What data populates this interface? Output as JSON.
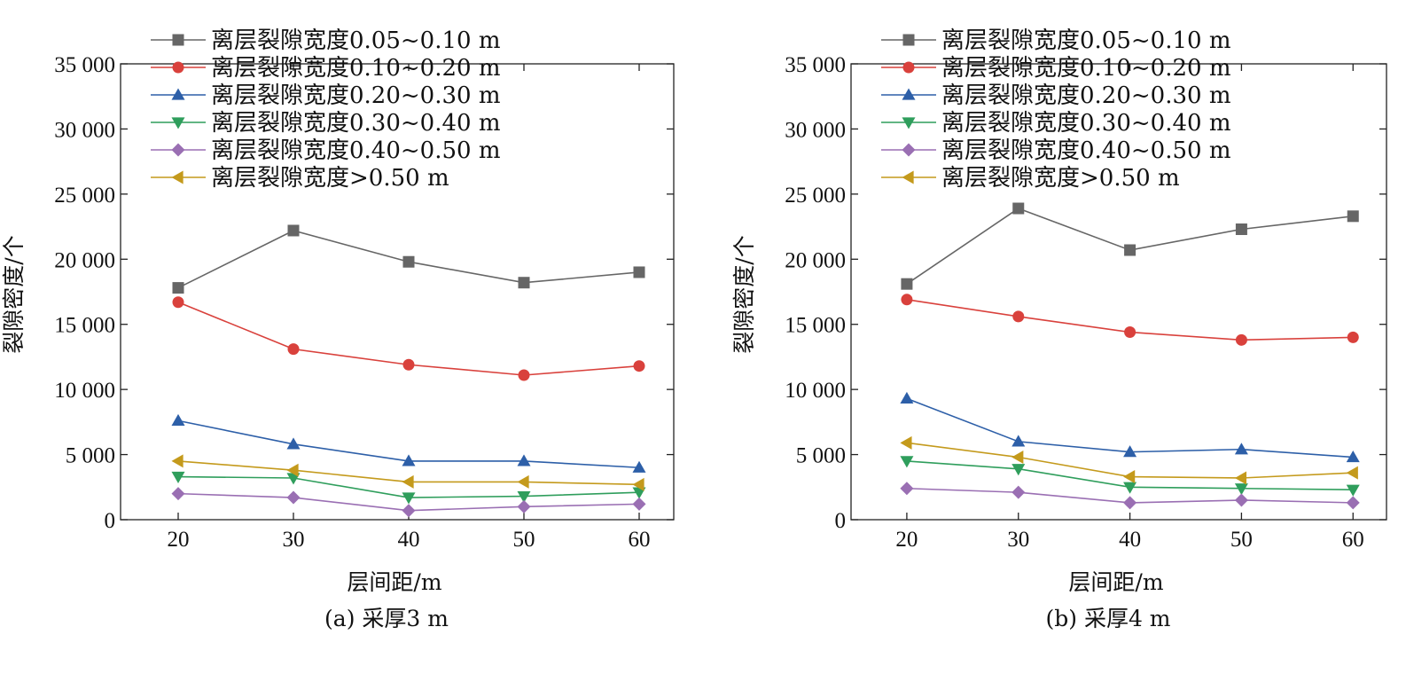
{
  "chart_data": [
    {
      "type": "line",
      "caption": "(a) 采厚3 m",
      "xlabel": "层间距/m",
      "ylabel": "裂隙密度/个",
      "x": [
        20,
        30,
        40,
        50,
        60
      ],
      "x_ticks": [
        "20",
        "30",
        "40",
        "50",
        "60"
      ],
      "xlim": [
        15,
        63
      ],
      "ylim": [
        0,
        35000
      ],
      "y_ticks": [
        "0",
        "5 000",
        "10 000",
        "15 000",
        "20 000",
        "25 000",
        "30 000",
        "35 000"
      ],
      "legend_position": "top-left",
      "series": [
        {
          "name": "离层裂隙宽度0.05~0.10 m",
          "color": "#666666",
          "marker": "square",
          "values": [
            17800,
            22200,
            19800,
            18200,
            19000
          ]
        },
        {
          "name": "离层裂隙宽度0.10~0.20 m",
          "color": "#d9413c",
          "marker": "circle",
          "values": [
            16700,
            13100,
            11900,
            11100,
            11800
          ]
        },
        {
          "name": "离层裂隙宽度0.20~0.30 m",
          "color": "#2d5fa8",
          "marker": "triangle-up",
          "values": [
            7600,
            5800,
            4500,
            4500,
            4000
          ]
        },
        {
          "name": "离层裂隙宽度0.30~0.40 m",
          "color": "#2f9e5c",
          "marker": "triangle-down",
          "values": [
            3300,
            3200,
            1700,
            1800,
            2100
          ]
        },
        {
          "name": "离层裂隙宽度0.40~0.50 m",
          "color": "#9a6fb3",
          "marker": "diamond",
          "values": [
            2000,
            1700,
            700,
            1000,
            1200
          ]
        },
        {
          "name": "离层裂隙宽度>0.50 m",
          "color": "#c49a1c",
          "marker": "triangle-left",
          "values": [
            4500,
            3800,
            2900,
            2900,
            2700
          ]
        }
      ]
    },
    {
      "type": "line",
      "caption": "(b) 采厚4 m",
      "xlabel": "层间距/m",
      "ylabel": "裂隙密度/个",
      "x": [
        20,
        30,
        40,
        50,
        60
      ],
      "x_ticks": [
        "20",
        "30",
        "40",
        "50",
        "60"
      ],
      "xlim": [
        15,
        63
      ],
      "ylim": [
        0,
        35000
      ],
      "y_ticks": [
        "0",
        "5 000",
        "10 000",
        "15 000",
        "20 000",
        "25 000",
        "30 000",
        "35 000"
      ],
      "legend_position": "top-left",
      "series": [
        {
          "name": "离层裂隙宽度0.05~0.10 m",
          "color": "#666666",
          "marker": "square",
          "values": [
            18100,
            23900,
            20700,
            22300,
            23300
          ]
        },
        {
          "name": "离层裂隙宽度0.10~0.20 m",
          "color": "#d9413c",
          "marker": "circle",
          "values": [
            16900,
            15600,
            14400,
            13800,
            14000
          ]
        },
        {
          "name": "离层裂隙宽度0.20~0.30 m",
          "color": "#2d5fa8",
          "marker": "triangle-up",
          "values": [
            9300,
            6000,
            5200,
            5400,
            4800
          ]
        },
        {
          "name": "离层裂隙宽度0.30~0.40 m",
          "color": "#2f9e5c",
          "marker": "triangle-down",
          "values": [
            4500,
            3900,
            2500,
            2400,
            2300
          ]
        },
        {
          "name": "离层裂隙宽度0.40~0.50 m",
          "color": "#9a6fb3",
          "marker": "diamond",
          "values": [
            2400,
            2100,
            1300,
            1500,
            1300
          ]
        },
        {
          "name": "离层裂隙宽度>0.50 m",
          "color": "#c49a1c",
          "marker": "triangle-left",
          "values": [
            5900,
            4800,
            3300,
            3200,
            3600
          ]
        }
      ]
    }
  ]
}
